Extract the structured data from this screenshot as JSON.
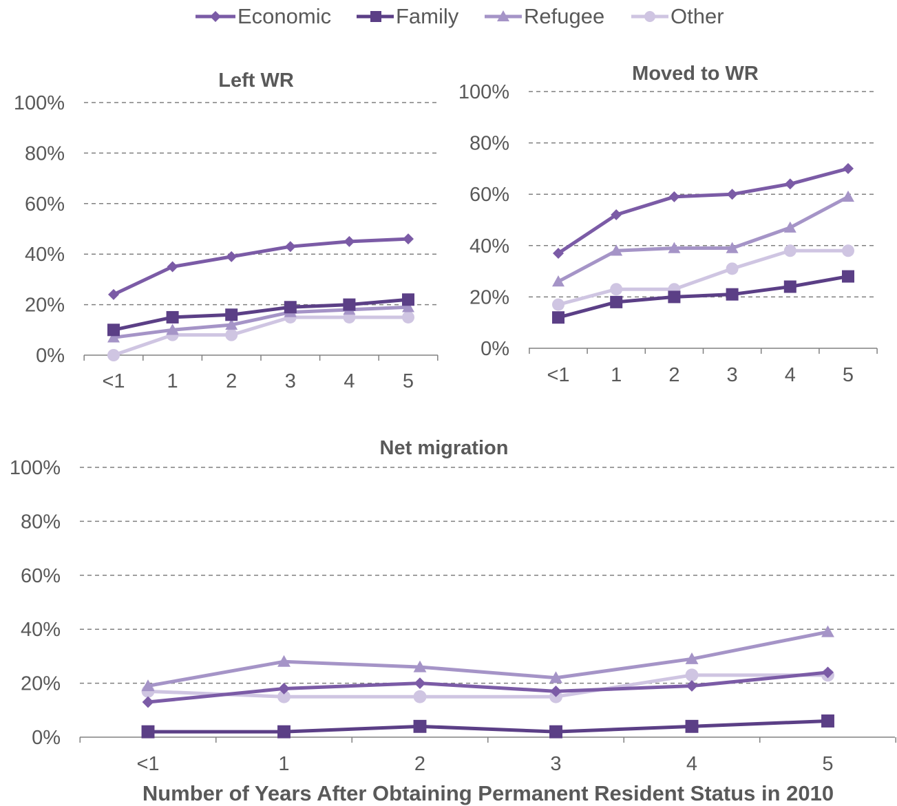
{
  "legend": {
    "items": [
      {
        "label": "Economic",
        "color": "#7B5BA6",
        "marker": "diamond"
      },
      {
        "label": "Family",
        "color": "#5B3F86",
        "marker": "square"
      },
      {
        "label": "Refugee",
        "color": "#A594C7",
        "marker": "triangle"
      },
      {
        "label": "Other",
        "color": "#CFC5E2",
        "marker": "circle"
      }
    ]
  },
  "x_axis_title": "Number of Years After Obtaining Permanent Resident Status in 2010",
  "chart_data": [
    {
      "type": "line",
      "title": "Left WR",
      "categories": [
        "<1",
        "1",
        "2",
        "3",
        "4",
        "5"
      ],
      "ylim": [
        0,
        100
      ],
      "yticks": [
        "0%",
        "20%",
        "40%",
        "60%",
        "80%",
        "100%"
      ],
      "grid": true,
      "series": [
        {
          "name": "Economic",
          "values": [
            24,
            35,
            39,
            43,
            45,
            46
          ]
        },
        {
          "name": "Family",
          "values": [
            10,
            15,
            16,
            19,
            20,
            22
          ]
        },
        {
          "name": "Refugee",
          "values": [
            7,
            10,
            12,
            17,
            18,
            19
          ]
        },
        {
          "name": "Other",
          "values": [
            0,
            8,
            8,
            15,
            15,
            15
          ]
        }
      ]
    },
    {
      "type": "line",
      "title": "Moved to WR",
      "categories": [
        "<1",
        "1",
        "2",
        "3",
        "4",
        "5"
      ],
      "ylim": [
        0,
        100
      ],
      "yticks": [
        "0%",
        "20%",
        "40%",
        "60%",
        "80%",
        "100%"
      ],
      "grid": true,
      "series": [
        {
          "name": "Economic",
          "values": [
            37,
            52,
            59,
            60,
            64,
            70
          ]
        },
        {
          "name": "Family",
          "values": [
            12,
            18,
            20,
            21,
            24,
            28
          ]
        },
        {
          "name": "Refugee",
          "values": [
            26,
            38,
            39,
            39,
            47,
            59
          ]
        },
        {
          "name": "Other",
          "values": [
            17,
            23,
            23,
            31,
            38,
            38
          ]
        }
      ]
    },
    {
      "type": "line",
      "title": "Net migration",
      "categories": [
        "<1",
        "1",
        "2",
        "3",
        "4",
        "5"
      ],
      "ylim": [
        0,
        100
      ],
      "yticks": [
        "0%",
        "20%",
        "40%",
        "60%",
        "80%",
        "100%"
      ],
      "grid": true,
      "series": [
        {
          "name": "Economic",
          "values": [
            13,
            18,
            20,
            17,
            19,
            24
          ]
        },
        {
          "name": "Family",
          "values": [
            2,
            2,
            4,
            2,
            4,
            6
          ]
        },
        {
          "name": "Refugee",
          "values": [
            19,
            28,
            26,
            22,
            29,
            39
          ]
        },
        {
          "name": "Other",
          "values": [
            17,
            15,
            15,
            15,
            23,
            23
          ]
        }
      ]
    }
  ]
}
